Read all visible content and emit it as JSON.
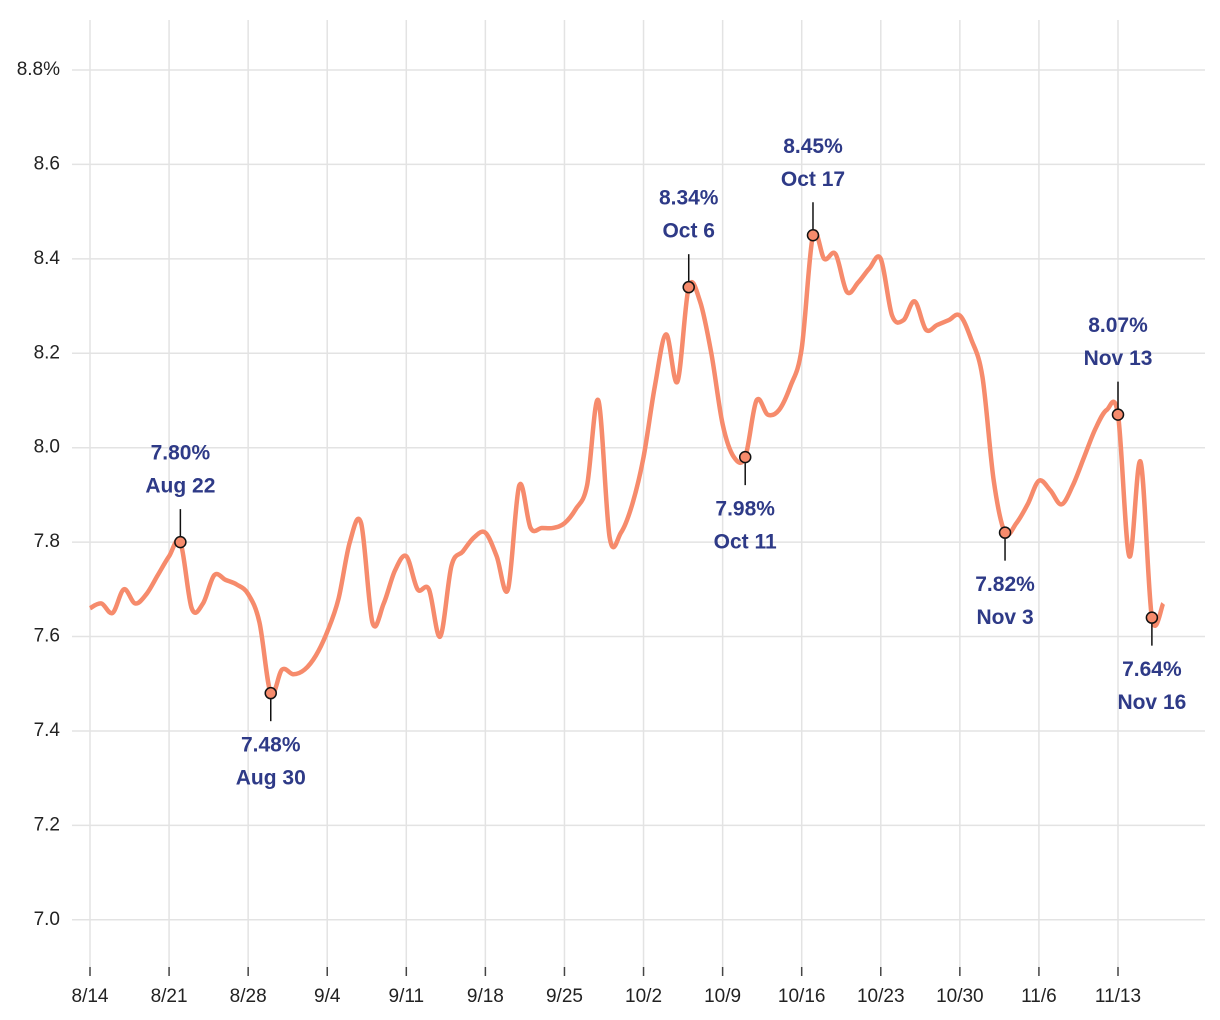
{
  "chart_data": {
    "type": "line",
    "categories": [
      "8/14",
      "8/15",
      "8/16",
      "8/17",
      "8/18",
      "8/19",
      "8/20",
      "8/21",
      "8/22",
      "8/23",
      "8/24",
      "8/25",
      "8/26",
      "8/27",
      "8/28",
      "8/29",
      "8/30",
      "8/31",
      "9/1",
      "9/2",
      "9/3",
      "9/4",
      "9/5",
      "9/6",
      "9/7",
      "9/8",
      "9/9",
      "9/10",
      "9/11",
      "9/12",
      "9/13",
      "9/14",
      "9/15",
      "9/16",
      "9/17",
      "9/18",
      "9/19",
      "9/20",
      "9/21",
      "9/22",
      "9/23",
      "9/24",
      "9/25",
      "9/26",
      "9/27",
      "9/28",
      "9/29",
      "9/30",
      "10/1",
      "10/2",
      "10/3",
      "10/4",
      "10/5",
      "10/6",
      "10/7",
      "10/8",
      "10/9",
      "10/10",
      "10/11",
      "10/12",
      "10/13",
      "10/14",
      "10/15",
      "10/16",
      "10/17",
      "10/18",
      "10/19",
      "10/20",
      "10/21",
      "10/22",
      "10/23",
      "10/24",
      "10/25",
      "10/26",
      "10/27",
      "10/28",
      "10/29",
      "10/30",
      "10/31",
      "11/1",
      "11/2",
      "11/3",
      "11/4",
      "11/5",
      "11/6",
      "11/7",
      "11/8",
      "11/9",
      "11/10",
      "11/11",
      "11/12",
      "11/13",
      "11/14",
      "11/15",
      "11/16",
      "11/17"
    ],
    "values": [
      7.66,
      7.67,
      7.65,
      7.7,
      7.67,
      7.69,
      7.73,
      7.77,
      7.8,
      7.66,
      7.67,
      7.73,
      7.72,
      7.71,
      7.69,
      7.63,
      7.48,
      7.53,
      7.52,
      7.53,
      7.56,
      7.61,
      7.68,
      7.8,
      7.84,
      7.63,
      7.67,
      7.74,
      7.77,
      7.7,
      7.7,
      7.6,
      7.75,
      7.78,
      7.81,
      7.82,
      7.77,
      7.7,
      7.92,
      7.83,
      7.83,
      7.83,
      7.84,
      7.87,
      7.92,
      8.1,
      7.81,
      7.82,
      7.88,
      7.98,
      8.13,
      8.24,
      8.14,
      8.34,
      8.31,
      8.2,
      8.05,
      7.98,
      7.98,
      8.1,
      8.07,
      8.08,
      8.13,
      8.21,
      8.45,
      8.4,
      8.41,
      8.33,
      8.35,
      8.38,
      8.4,
      8.28,
      8.27,
      8.31,
      8.25,
      8.26,
      8.27,
      8.28,
      8.23,
      8.15,
      7.93,
      7.82,
      7.84,
      7.88,
      7.93,
      7.91,
      7.88,
      7.92,
      7.98,
      8.04,
      8.08,
      8.07,
      7.77,
      7.97,
      7.64,
      7.67
    ],
    "color": "#f68b6c",
    "ylim": [
      6.9,
      8.9
    ],
    "yticks": [
      {
        "value": 7.0,
        "label": "7.0"
      },
      7.2,
      7.4,
      7.6,
      {
        "value": 7.8,
        "label": "7.8"
      },
      {
        "value": 8.0,
        "label": "8.0"
      },
      8.2,
      8.4,
      8.6,
      {
        "value": 8.8,
        "label": "8.8%"
      }
    ],
    "xticks": [
      "8/14",
      "8/21",
      "8/28",
      "9/4",
      "9/11",
      "9/18",
      "9/25",
      "10/2",
      "10/9",
      "10/16",
      "10/23",
      "10/30",
      "11/6",
      "11/13"
    ],
    "grid": true,
    "annotations": [
      {
        "x": "8/22",
        "y": 7.8,
        "label": "7.80%",
        "text": "Aug 22",
        "position": "above"
      },
      {
        "x": "8/30",
        "y": 7.48,
        "label": "7.48%",
        "text": "Aug 30",
        "position": "below"
      },
      {
        "x": "10/6",
        "y": 8.34,
        "label": "8.34%",
        "text": "Oct 6",
        "position": "above"
      },
      {
        "x": "10/11",
        "y": 7.98,
        "label": "7.98%",
        "text": "Oct 11",
        "position": "below"
      },
      {
        "x": "10/17",
        "y": 8.45,
        "label": "8.45%",
        "text": "Oct 17",
        "position": "above"
      },
      {
        "x": "11/3",
        "y": 7.82,
        "label": "7.82%",
        "text": "Nov 3",
        "position": "below"
      },
      {
        "x": "11/13",
        "y": 8.07,
        "label": "8.07%",
        "text": "Nov 13",
        "position": "above"
      },
      {
        "x": "11/16",
        "y": 7.64,
        "label": "7.64%",
        "text": "Nov 16",
        "position": "below"
      }
    ]
  }
}
